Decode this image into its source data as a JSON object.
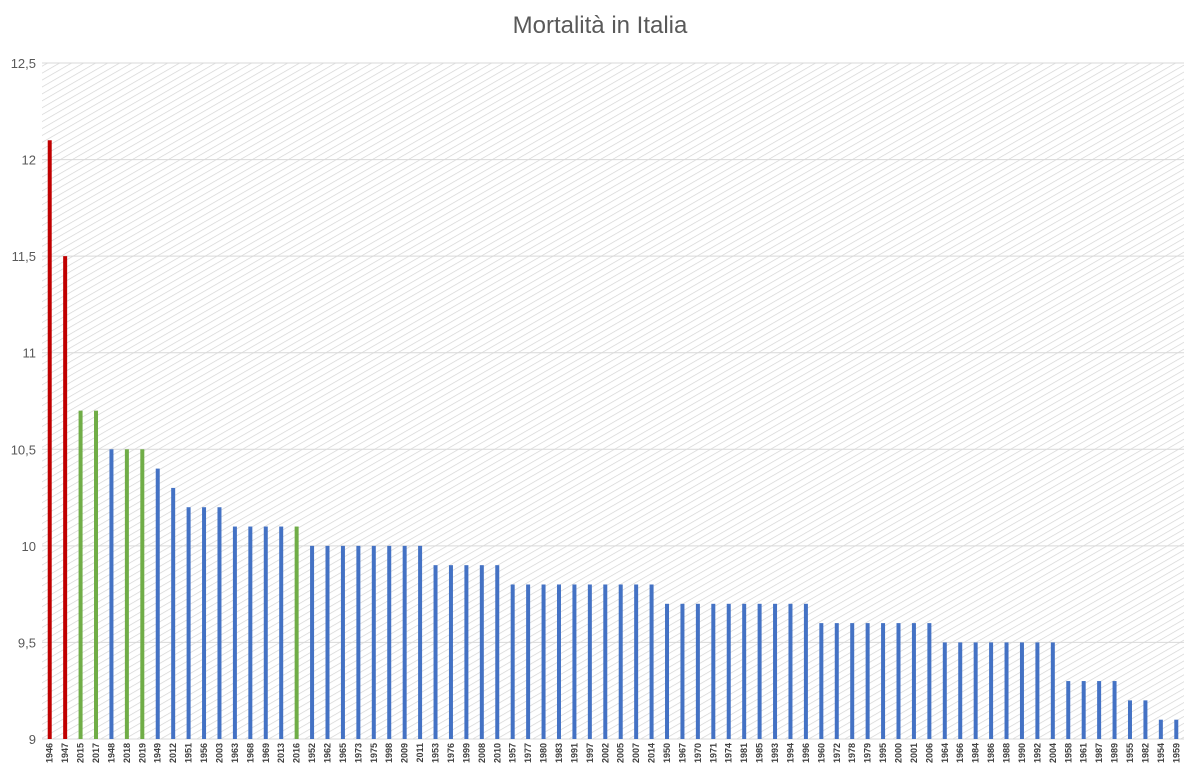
{
  "chart_data": {
    "type": "bar",
    "title": "Mortalità in Italia",
    "xlabel": "",
    "ylabel": "",
    "ylim": [
      9,
      12.5
    ],
    "yticks": [
      9,
      9.5,
      10,
      10.5,
      11,
      11.5,
      12,
      12.5
    ],
    "ytick_labels": [
      "9",
      "9,5",
      "10",
      "10,5",
      "11",
      "11,5",
      "12",
      "12,5"
    ],
    "grid": "horizontal",
    "background_pattern": "diagonal-hatch",
    "colors": {
      "postwar": "#c00000",
      "recent": "#70ad47",
      "other": "#4472c4"
    },
    "categories": [
      "1946",
      "1947",
      "2015",
      "2017",
      "1948",
      "2018",
      "2019",
      "1949",
      "2012",
      "1951",
      "1956",
      "2003",
      "1963",
      "1968",
      "1969",
      "2013",
      "2016",
      "1952",
      "1962",
      "1965",
      "1973",
      "1975",
      "1998",
      "2009",
      "2011",
      "1953",
      "1976",
      "1999",
      "2008",
      "2010",
      "1957",
      "1977",
      "1980",
      "1983",
      "1991",
      "1997",
      "2002",
      "2005",
      "2007",
      "2014",
      "1950",
      "1967",
      "1970",
      "1971",
      "1974",
      "1981",
      "1985",
      "1993",
      "1994",
      "1996",
      "1960",
      "1972",
      "1978",
      "1979",
      "1995",
      "2000",
      "2001",
      "2006",
      "1964",
      "1966",
      "1984",
      "1986",
      "1988",
      "1990",
      "1992",
      "2004",
      "1958",
      "1961",
      "1987",
      "1989",
      "1955",
      "1982",
      "1954",
      "1959"
    ],
    "values": [
      12.1,
      11.5,
      10.7,
      10.7,
      10.5,
      10.5,
      10.5,
      10.4,
      10.3,
      10.2,
      10.2,
      10.2,
      10.1,
      10.1,
      10.1,
      10.1,
      10.1,
      10.0,
      10.0,
      10.0,
      10.0,
      10.0,
      10.0,
      10.0,
      10.0,
      9.9,
      9.9,
      9.9,
      9.9,
      9.9,
      9.8,
      9.8,
      9.8,
      9.8,
      9.8,
      9.8,
      9.8,
      9.8,
      9.8,
      9.8,
      9.7,
      9.7,
      9.7,
      9.7,
      9.7,
      9.7,
      9.7,
      9.7,
      9.7,
      9.7,
      9.6,
      9.6,
      9.6,
      9.6,
      9.6,
      9.6,
      9.6,
      9.6,
      9.5,
      9.5,
      9.5,
      9.5,
      9.5,
      9.5,
      9.5,
      9.5,
      9.3,
      9.3,
      9.3,
      9.3,
      9.2,
      9.2,
      9.1,
      9.1
    ],
    "bar_groups": [
      "postwar",
      "postwar",
      "recent",
      "recent",
      "other",
      "recent",
      "recent",
      "other",
      "other",
      "other",
      "other",
      "other",
      "other",
      "other",
      "other",
      "other",
      "recent",
      "other",
      "other",
      "other",
      "other",
      "other",
      "other",
      "other",
      "other",
      "other",
      "other",
      "other",
      "other",
      "other",
      "other",
      "other",
      "other",
      "other",
      "other",
      "other",
      "other",
      "other",
      "other",
      "other",
      "other",
      "other",
      "other",
      "other",
      "other",
      "other",
      "other",
      "other",
      "other",
      "other",
      "other",
      "other",
      "other",
      "other",
      "other",
      "other",
      "other",
      "other",
      "other",
      "other",
      "other",
      "other",
      "other",
      "other",
      "other",
      "other",
      "other",
      "other",
      "other",
      "other",
      "other",
      "other",
      "other",
      "other"
    ]
  }
}
